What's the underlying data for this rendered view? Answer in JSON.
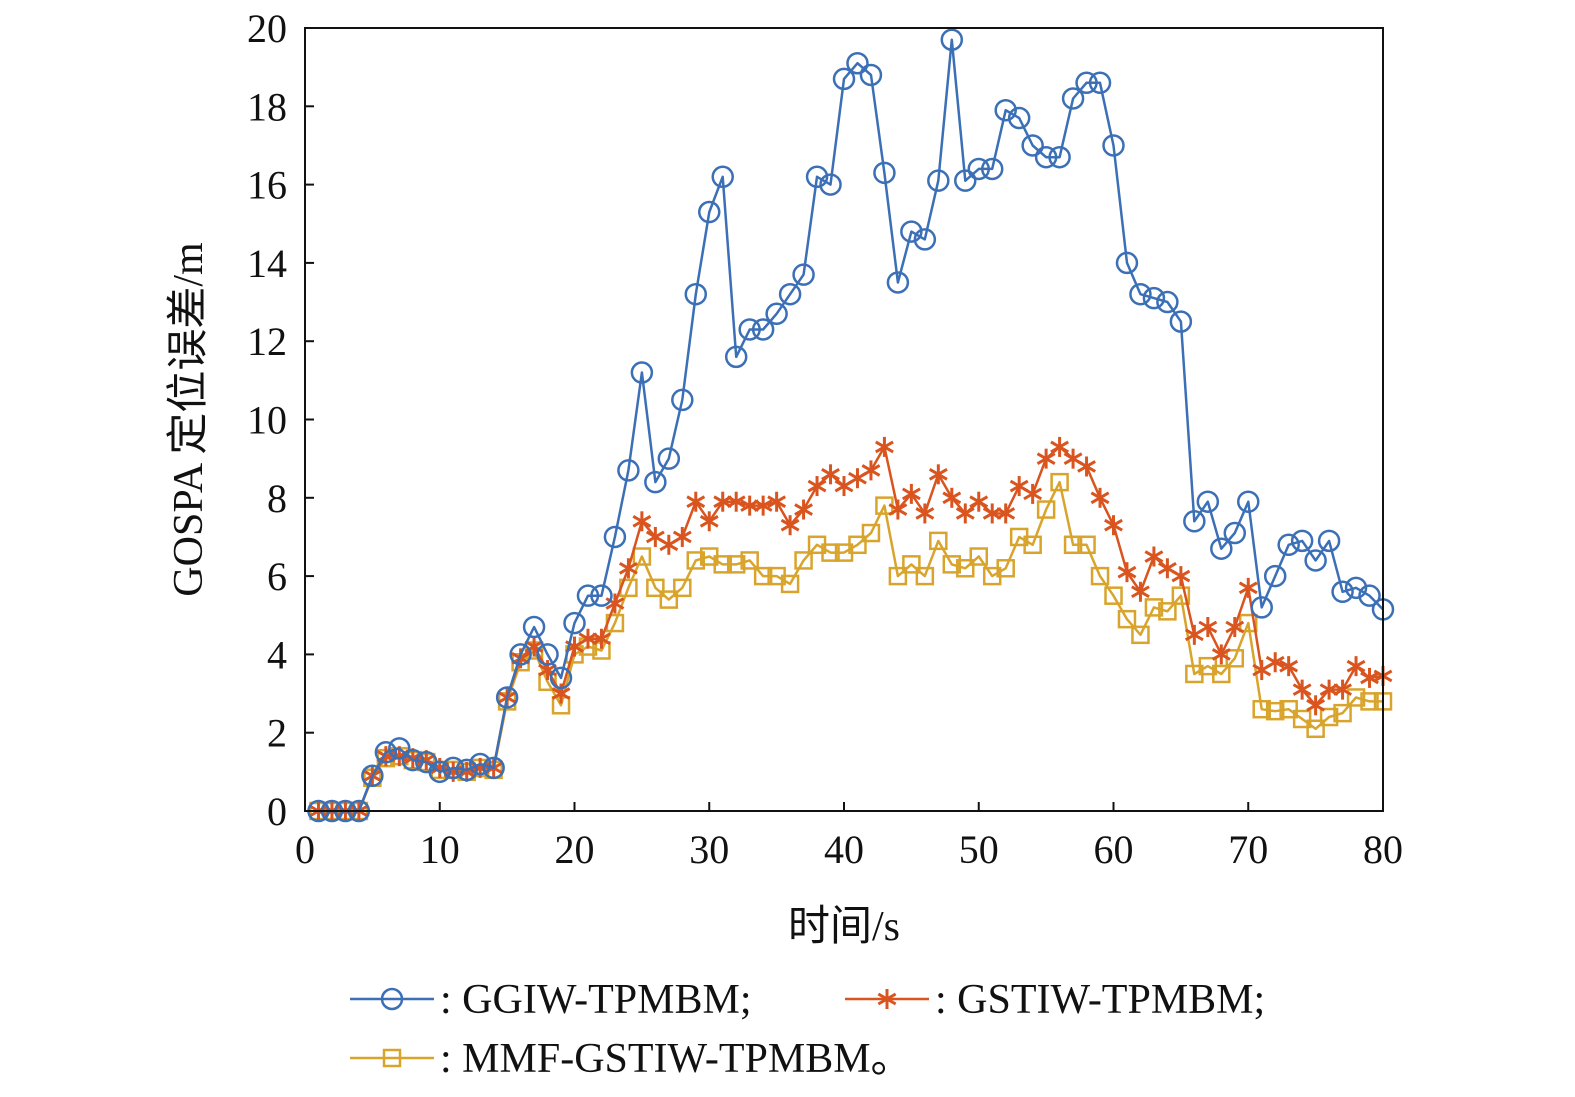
{
  "chart_data": {
    "type": "line",
    "xlabel": "时间/s",
    "ylabel": "GOSPA 定位误差/m",
    "xlim": [
      0,
      80
    ],
    "ylim": [
      0,
      20
    ],
    "xticks": [
      0,
      10,
      20,
      30,
      40,
      50,
      60,
      70,
      80
    ],
    "yticks": [
      0,
      2,
      4,
      6,
      8,
      10,
      12,
      14,
      16,
      18,
      20
    ],
    "grid": false,
    "legend_position": "bottom",
    "legend_separator": ": ",
    "x": [
      1,
      2,
      3,
      4,
      5,
      6,
      7,
      8,
      9,
      10,
      11,
      12,
      13,
      14,
      15,
      16,
      17,
      18,
      19,
      20,
      21,
      22,
      23,
      24,
      25,
      26,
      27,
      28,
      29,
      30,
      31,
      32,
      33,
      34,
      35,
      36,
      37,
      38,
      39,
      40,
      41,
      42,
      43,
      44,
      45,
      46,
      47,
      48,
      49,
      50,
      51,
      52,
      53,
      54,
      55,
      56,
      57,
      58,
      59,
      60,
      61,
      62,
      63,
      64,
      65,
      66,
      67,
      68,
      69,
      70,
      71,
      72,
      73,
      74,
      75,
      76,
      77,
      78,
      79,
      80
    ],
    "series": [
      {
        "name": "GGIW-TPMBM;",
        "legend_label": ": GGIW-TPMBM;",
        "color": "#3b6fb6",
        "marker": "circle",
        "values": [
          0,
          0,
          0,
          0,
          0.9,
          1.5,
          1.6,
          1.3,
          1.25,
          1.0,
          1.1,
          1.05,
          1.2,
          1.1,
          2.9,
          4.0,
          4.7,
          4.0,
          3.4,
          4.8,
          5.5,
          5.5,
          7.0,
          8.7,
          11.2,
          8.4,
          9.0,
          10.5,
          13.2,
          15.3,
          16.2,
          11.6,
          12.3,
          12.3,
          12.7,
          13.2,
          13.7,
          16.2,
          16.0,
          18.7,
          19.1,
          18.8,
          16.3,
          13.5,
          14.8,
          14.6,
          16.1,
          19.7,
          16.1,
          16.4,
          16.4,
          17.9,
          17.7,
          17.0,
          16.7,
          16.7,
          18.2,
          18.6,
          18.6,
          17.0,
          14.0,
          13.2,
          13.1,
          13.0,
          12.5,
          7.4,
          7.9,
          6.7,
          7.1,
          7.9,
          5.2,
          6.0,
          6.8,
          6.9,
          6.4,
          6.9,
          5.6,
          5.7,
          5.5,
          5.15
        ]
      },
      {
        "name": "GSTIW-TPMBM;",
        "legend_label": ": GSTIW-TPMBM;",
        "color": "#d9541e",
        "marker": "star",
        "values": [
          0,
          0,
          0,
          0,
          0.9,
          1.4,
          1.4,
          1.35,
          1.3,
          1.1,
          1.0,
          1.0,
          1.1,
          1.1,
          2.9,
          3.9,
          4.2,
          3.6,
          3.0,
          4.2,
          4.4,
          4.4,
          5.3,
          6.2,
          7.4,
          7.0,
          6.8,
          7.0,
          7.9,
          7.4,
          7.9,
          7.9,
          7.8,
          7.8,
          7.9,
          7.3,
          7.7,
          8.3,
          8.6,
          8.3,
          8.5,
          8.7,
          9.3,
          7.7,
          8.1,
          7.6,
          8.6,
          8.0,
          7.6,
          7.9,
          7.6,
          7.6,
          8.3,
          8.1,
          9.0,
          9.3,
          9.0,
          8.8,
          8.0,
          7.3,
          6.1,
          5.6,
          6.5,
          6.2,
          6.0,
          4.5,
          4.7,
          4.0,
          4.7,
          5.7,
          3.6,
          3.8,
          3.7,
          3.1,
          2.7,
          3.1,
          3.1,
          3.7,
          3.4,
          3.45
        ]
      },
      {
        "name": "MMF-GSTIW-TPMBM。",
        "legend_label": ": MMF-GSTIW-TPMBM。",
        "color": "#d9a42c",
        "marker": "square",
        "values": [
          0,
          0,
          0,
          0,
          0.85,
          1.35,
          1.4,
          1.3,
          1.25,
          1.05,
          1.05,
          1.0,
          1.1,
          1.05,
          2.8,
          3.8,
          4.1,
          3.3,
          2.7,
          4.0,
          4.2,
          4.1,
          4.8,
          5.7,
          6.5,
          5.7,
          5.4,
          5.7,
          6.4,
          6.5,
          6.3,
          6.3,
          6.4,
          6.0,
          6.0,
          5.8,
          6.4,
          6.8,
          6.6,
          6.6,
          6.8,
          7.1,
          7.8,
          6.0,
          6.3,
          6.0,
          6.9,
          6.3,
          6.2,
          6.5,
          6.0,
          6.2,
          7.0,
          6.8,
          7.7,
          8.4,
          6.8,
          6.8,
          6.0,
          5.5,
          4.9,
          4.5,
          5.2,
          5.1,
          5.5,
          3.5,
          3.7,
          3.5,
          3.9,
          4.8,
          2.6,
          2.55,
          2.6,
          2.35,
          2.1,
          2.4,
          2.5,
          2.9,
          2.8,
          2.8
        ]
      }
    ]
  }
}
